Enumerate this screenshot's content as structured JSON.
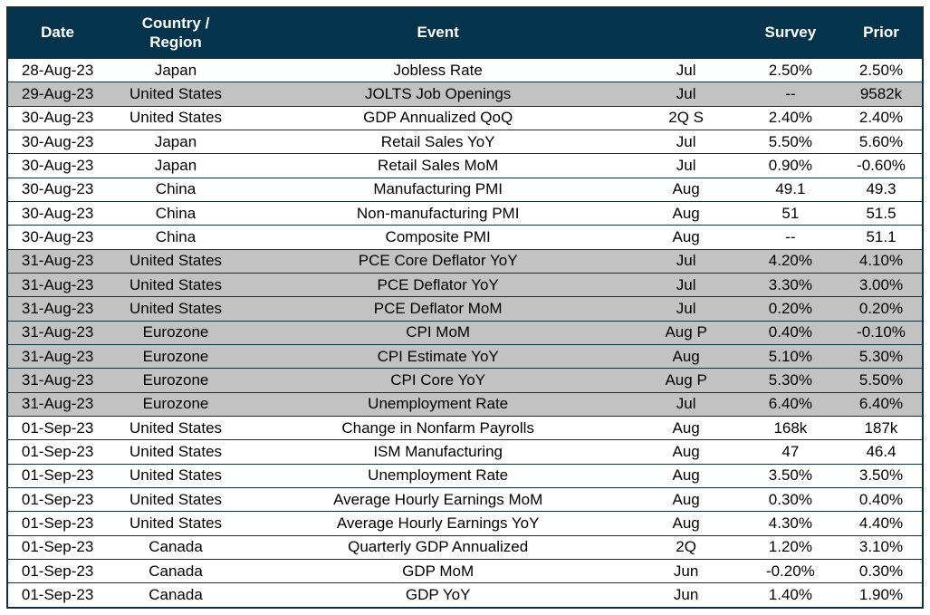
{
  "theme": {
    "header_bg": "#04344c",
    "header_text": "#ffffff",
    "shaded_row_bg": "#c2c2c2",
    "grid_line": "#14303c",
    "text": "#000000",
    "page_bg": "#ffffff"
  },
  "table": {
    "columns": [
      {
        "key": "date",
        "label": "Date"
      },
      {
        "key": "region",
        "label": "Country /\nRegion"
      },
      {
        "key": "event",
        "label": "Event"
      },
      {
        "key": "period",
        "label": ""
      },
      {
        "key": "survey",
        "label": "Survey"
      },
      {
        "key": "prior",
        "label": "Prior"
      }
    ],
    "rows": [
      {
        "date": "28-Aug-23",
        "region": "Japan",
        "event": "Jobless Rate",
        "period": "Jul",
        "survey": "2.50%",
        "prior": "2.50%",
        "shaded": false
      },
      {
        "date": "29-Aug-23",
        "region": "United States",
        "event": "JOLTS Job Openings",
        "period": "Jul",
        "survey": "--",
        "prior": "9582k",
        "shaded": true
      },
      {
        "date": "30-Aug-23",
        "region": "United States",
        "event": "GDP Annualized QoQ",
        "period": "2Q S",
        "survey": "2.40%",
        "prior": "2.40%",
        "shaded": false
      },
      {
        "date": "30-Aug-23",
        "region": "Japan",
        "event": "Retail Sales YoY",
        "period": "Jul",
        "survey": "5.50%",
        "prior": "5.60%",
        "shaded": false
      },
      {
        "date": "30-Aug-23",
        "region": "Japan",
        "event": "Retail Sales MoM",
        "period": "Jul",
        "survey": "0.90%",
        "prior": "-0.60%",
        "shaded": false
      },
      {
        "date": "30-Aug-23",
        "region": "China",
        "event": "Manufacturing PMI",
        "period": "Aug",
        "survey": "49.1",
        "prior": "49.3",
        "shaded": false
      },
      {
        "date": "30-Aug-23",
        "region": "China",
        "event": "Non-manufacturing PMI",
        "period": "Aug",
        "survey": "51",
        "prior": "51.5",
        "shaded": false
      },
      {
        "date": "30-Aug-23",
        "region": "China",
        "event": "Composite PMI",
        "period": "Aug",
        "survey": "--",
        "prior": "51.1",
        "shaded": false
      },
      {
        "date": "31-Aug-23",
        "region": "United States",
        "event": "PCE Core Deflator YoY",
        "period": "Jul",
        "survey": "4.20%",
        "prior": "4.10%",
        "shaded": true
      },
      {
        "date": "31-Aug-23",
        "region": "United States",
        "event": "PCE Deflator YoY",
        "period": "Jul",
        "survey": "3.30%",
        "prior": "3.00%",
        "shaded": true
      },
      {
        "date": "31-Aug-23",
        "region": "United States",
        "event": "PCE Deflator MoM",
        "period": "Jul",
        "survey": "0.20%",
        "prior": "0.20%",
        "shaded": true
      },
      {
        "date": "31-Aug-23",
        "region": "Eurozone",
        "event": "CPI MoM",
        "period": "Aug P",
        "survey": "0.40%",
        "prior": "-0.10%",
        "shaded": true
      },
      {
        "date": "31-Aug-23",
        "region": "Eurozone",
        "event": "CPI Estimate YoY",
        "period": "Aug",
        "survey": "5.10%",
        "prior": "5.30%",
        "shaded": true
      },
      {
        "date": "31-Aug-23",
        "region": "Eurozone",
        "event": "CPI Core YoY",
        "period": "Aug P",
        "survey": "5.30%",
        "prior": "5.50%",
        "shaded": true
      },
      {
        "date": "31-Aug-23",
        "region": "Eurozone",
        "event": "Unemployment Rate",
        "period": "Jul",
        "survey": "6.40%",
        "prior": "6.40%",
        "shaded": true
      },
      {
        "date": "01-Sep-23",
        "region": "United States",
        "event": "Change in Nonfarm Payrolls",
        "period": "Aug",
        "survey": "168k",
        "prior": "187k",
        "shaded": false
      },
      {
        "date": "01-Sep-23",
        "region": "United States",
        "event": "ISM Manufacturing",
        "period": "Aug",
        "survey": "47",
        "prior": "46.4",
        "shaded": false
      },
      {
        "date": "01-Sep-23",
        "region": "United States",
        "event": "Unemployment Rate",
        "period": "Aug",
        "survey": "3.50%",
        "prior": "3.50%",
        "shaded": false
      },
      {
        "date": "01-Sep-23",
        "region": "United States",
        "event": "Average Hourly Earnings MoM",
        "period": "Aug",
        "survey": "0.30%",
        "prior": "0.40%",
        "shaded": false
      },
      {
        "date": "01-Sep-23",
        "region": "United States",
        "event": "Average Hourly Earnings YoY",
        "period": "Aug",
        "survey": "4.30%",
        "prior": "4.40%",
        "shaded": false
      },
      {
        "date": "01-Sep-23",
        "region": "Canada",
        "event": "Quarterly GDP Annualized",
        "period": "2Q",
        "survey": "1.20%",
        "prior": "3.10%",
        "shaded": false
      },
      {
        "date": "01-Sep-23",
        "region": "Canada",
        "event": "GDP MoM",
        "period": "Jun",
        "survey": "-0.20%",
        "prior": "0.30%",
        "shaded": false
      },
      {
        "date": "01-Sep-23",
        "region": "Canada",
        "event": "GDP YoY",
        "period": "Jun",
        "survey": "1.40%",
        "prior": "1.90%",
        "shaded": false
      }
    ]
  }
}
